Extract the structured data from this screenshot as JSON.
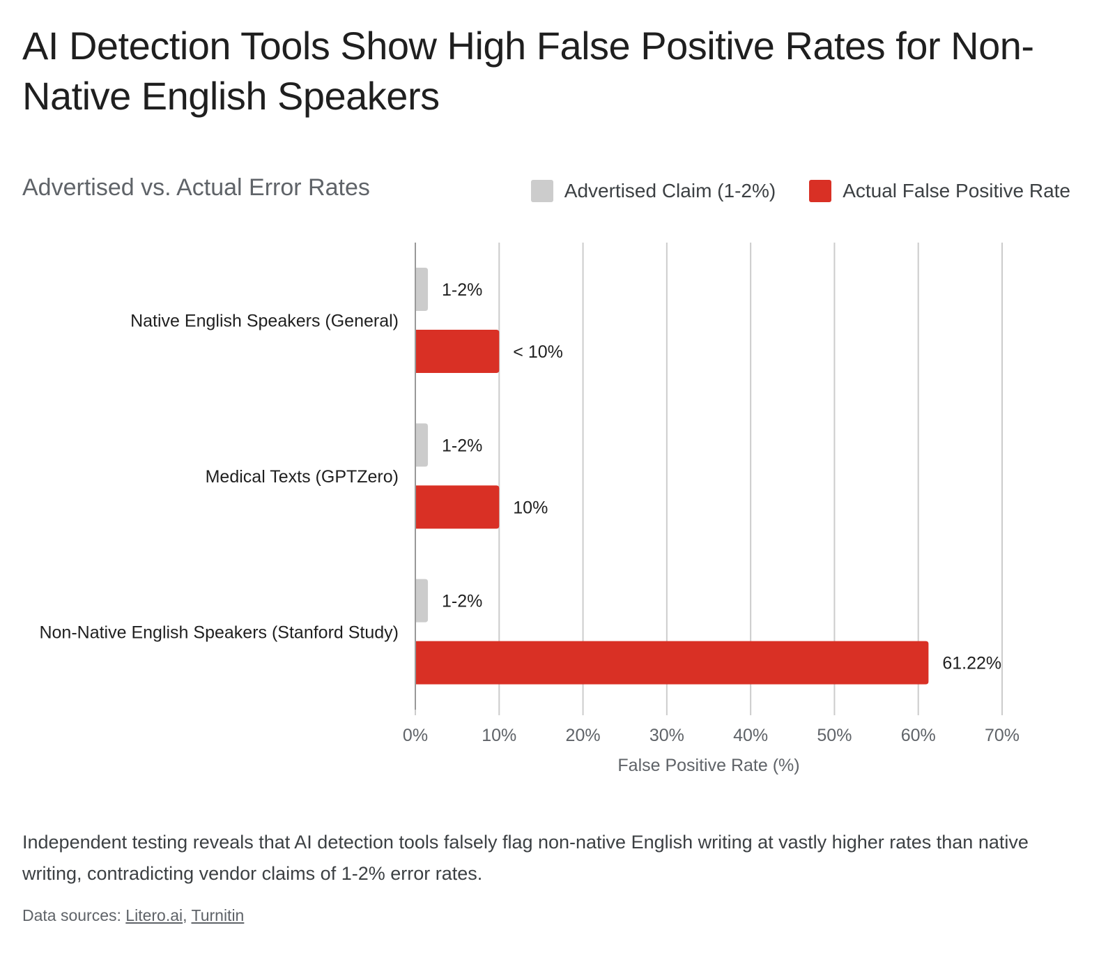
{
  "title": "AI Detection Tools Show High False Positive Rates for Non-Native English Speakers",
  "subtitle": "Advertised vs. Actual Error Rates",
  "legend": [
    {
      "label": "Advertised Claim (1-2%)",
      "color": "#cccccc"
    },
    {
      "label": "Actual False Positive Rate",
      "color": "#d93025"
    }
  ],
  "chart_data": {
    "type": "bar",
    "orientation": "horizontal",
    "categories": [
      "Native English Speakers (General)",
      "Medical Texts (GPTZero)",
      "Non-Native English Speakers (Stanford Study)"
    ],
    "series": [
      {
        "name": "Advertised Claim (1-2%)",
        "color": "#cccccc",
        "values": [
          1.5,
          1.5,
          1.5
        ],
        "labels": [
          "1-2%",
          "1-2%",
          "1-2%"
        ]
      },
      {
        "name": "Actual False Positive Rate",
        "color": "#d93025",
        "values": [
          10,
          10,
          61.22
        ],
        "labels": [
          "< 10%",
          "10%",
          "61.22%"
        ]
      }
    ],
    "xlabel": "False Positive Rate (%)",
    "xlim": [
      0,
      70
    ],
    "xticks": [
      0,
      10,
      20,
      30,
      40,
      50,
      60,
      70
    ],
    "xtick_labels": [
      "0%",
      "10%",
      "20%",
      "30%",
      "40%",
      "50%",
      "60%",
      "70%"
    ],
    "grid": true,
    "legend_position": "top-right"
  },
  "description": "Independent testing reveals that AI detection tools falsely flag non-native English writing at vastly higher rates than native writing, contradicting vendor claims of 1-2% error rates.",
  "sources": {
    "prefix": "Data sources: ",
    "links": [
      "Litero.ai",
      "Turnitin"
    ]
  }
}
